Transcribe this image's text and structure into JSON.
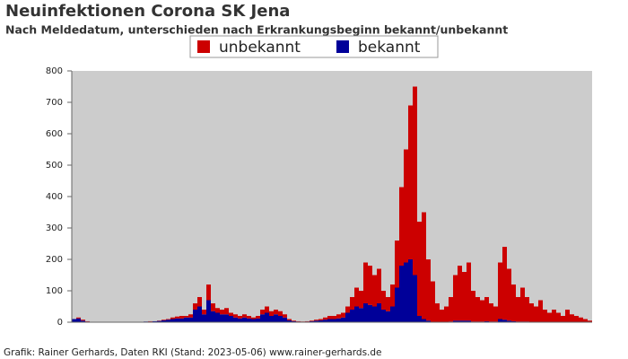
{
  "chart_data": {
    "type": "stacked_bar",
    "title": "Neuinfektionen Corona SK Jena",
    "subtitle": "Nach Meldedatum, unterschieden nach Erkrankungsbeginn bekannt/unbekannt",
    "source": "Grafik: Rainer Gerhards, Daten RKI (Stand: 2023-05-06) www.rainer-gerhards.de",
    "categories": [
      null,
      null,
      null,
      null,
      null,
      null,
      null,
      null,
      null,
      null,
      null,
      null,
      null,
      null,
      null,
      null,
      null,
      null,
      null,
      null,
      null,
      null,
      null,
      null,
      null,
      null,
      null,
      null,
      null,
      null,
      null,
      null,
      null,
      null,
      null,
      null,
      null,
      null,
      null,
      null,
      null,
      null,
      null,
      null,
      null,
      null,
      null,
      null,
      null,
      null,
      null,
      null,
      null,
      null,
      null,
      null,
      null,
      null,
      null,
      null,
      null,
      null,
      null,
      null,
      null,
      null,
      null,
      null,
      null,
      null,
      null,
      null,
      null,
      null,
      null,
      null,
      null,
      null,
      null,
      null,
      null,
      null,
      null,
      null,
      null,
      null,
      null,
      null,
      null,
      null,
      null,
      null,
      null,
      null,
      null,
      null,
      null,
      null,
      null,
      null,
      null,
      null,
      null,
      null,
      null,
      null,
      null,
      null,
      null,
      null,
      null,
      null,
      null,
      null,
      null,
      null
    ],
    "series": [
      {
        "name": "unbekannt",
        "color": "#cc0000",
        "values": [
          0,
          3,
          3,
          1,
          0,
          0,
          0,
          0,
          0,
          0,
          0,
          0,
          0,
          0,
          0,
          0,
          0,
          1,
          0,
          1,
          2,
          2,
          5,
          6,
          8,
          5,
          10,
          20,
          30,
          15,
          50,
          25,
          15,
          15,
          20,
          10,
          10,
          8,
          10,
          8,
          5,
          8,
          15,
          20,
          15,
          15,
          15,
          10,
          4,
          2,
          1,
          1,
          1,
          2,
          3,
          4,
          7,
          10,
          10,
          13,
          15,
          20,
          40,
          60,
          55,
          130,
          125,
          100,
          110,
          60,
          45,
          70,
          150,
          250,
          360,
          490,
          600,
          300,
          340,
          195,
          130,
          60,
          40,
          50,
          78,
          145,
          175,
          155,
          185,
          98,
          78,
          68,
          77,
          58,
          48,
          180,
          232,
          165,
          117,
          78,
          108,
          78,
          59,
          49,
          69,
          40,
          30,
          40,
          30,
          20,
          40,
          25,
          20,
          15,
          10,
          5
        ]
      },
      {
        "name": "bekannt",
        "color": "#000099",
        "values": [
          10,
          12,
          5,
          2,
          0,
          0,
          0,
          0,
          0,
          0,
          0,
          0,
          0,
          0,
          0,
          0,
          2,
          2,
          3,
          4,
          6,
          8,
          10,
          12,
          12,
          15,
          15,
          40,
          50,
          25,
          70,
          35,
          30,
          25,
          25,
          20,
          15,
          12,
          15,
          12,
          10,
          12,
          25,
          30,
          20,
          25,
          20,
          15,
          6,
          3,
          2,
          1,
          2,
          3,
          5,
          6,
          8,
          10,
          10,
          12,
          15,
          30,
          40,
          50,
          45,
          60,
          55,
          50,
          60,
          40,
          35,
          50,
          110,
          180,
          190,
          200,
          150,
          20,
          10,
          5,
          0,
          0,
          0,
          0,
          2,
          5,
          5,
          5,
          5,
          2,
          2,
          2,
          3,
          2,
          2,
          10,
          8,
          5,
          3,
          2,
          2,
          2,
          1,
          1,
          1,
          0,
          0,
          0,
          0,
          0,
          0,
          0,
          0,
          0,
          0,
          0
        ]
      }
    ],
    "ylim": [
      0,
      800
    ],
    "yticks": [
      0,
      100,
      200,
      300,
      400,
      500,
      600,
      700,
      800
    ]
  }
}
